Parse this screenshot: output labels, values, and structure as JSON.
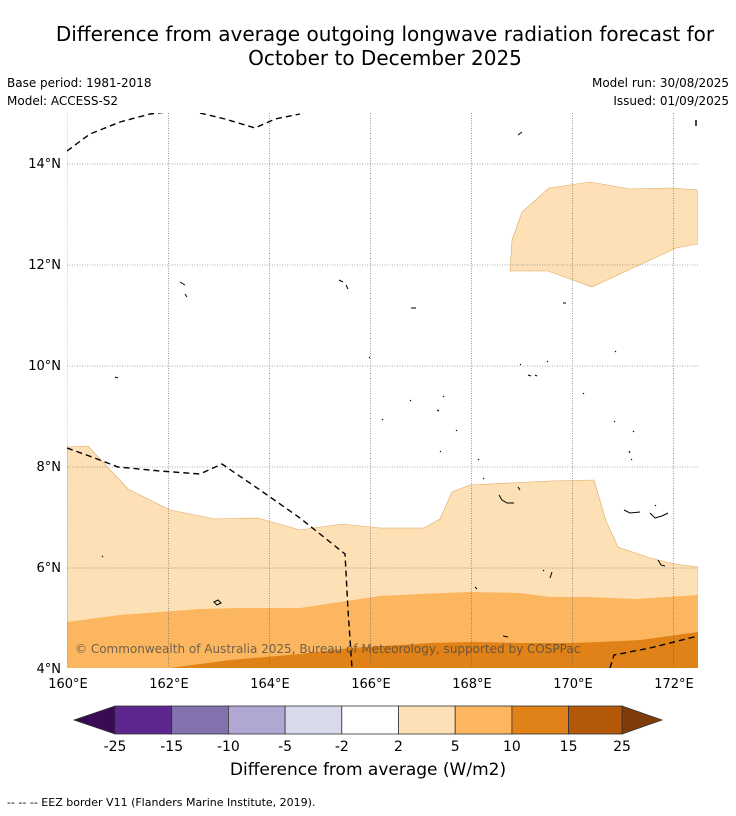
{
  "title": {
    "line1": "Difference from average outgoing longwave radiation forecast for",
    "line2": "October to December 2025"
  },
  "info": {
    "base_period": "Base period: 1981-2018",
    "model": "Model: ACCESS-S2",
    "model_run": "Model run: 30/08/2025",
    "issued": "Issued: 01/09/2025"
  },
  "map": {
    "lon_range": [
      160,
      172.5
    ],
    "lat_range": [
      4,
      15.1
    ],
    "lon_ticks": [
      "160°E",
      "162°E",
      "164°E",
      "166°E",
      "168°E",
      "170°E",
      "172°E"
    ],
    "lat_ticks": [
      "4°N",
      "6°N",
      "8°N",
      "10°N",
      "12°N",
      "14°N"
    ],
    "grid": true,
    "copyright": "© Commonwealth of Australia 2025, Bureau of Meteorology, supported by COSPPac"
  },
  "colorbar": {
    "labels": [
      "-25",
      "-15",
      "-10",
      "-5",
      "-2",
      "2",
      "5",
      "10",
      "15",
      "25"
    ],
    "colors": [
      "#3b0a55",
      "#5e2790",
      "#8472b0",
      "#b0a8d3",
      "#d9d9ec",
      "#ffffff",
      "#fde0b5",
      "#fbb65f",
      "#e08218",
      "#b35806",
      "#7f3b08"
    ],
    "title": "Difference from average (W/m2)"
  },
  "legend": {
    "eez": "--  --  -- EEZ border V11 (Flanders Marine Institute, 2019)."
  }
}
